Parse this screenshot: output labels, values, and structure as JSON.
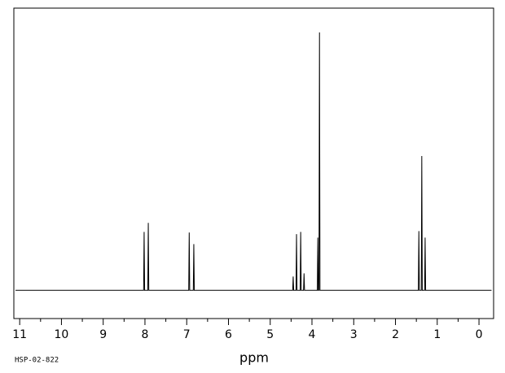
{
  "chart_data": {
    "type": "line",
    "x_label": "ppm",
    "footnote": "HSP-02-822",
    "color": "#000000",
    "x": [
      11.1,
      8.032,
      8.02,
      8.008,
      7.932,
      7.92,
      7.908,
      6.952,
      6.94,
      6.928,
      6.842,
      6.83,
      6.818,
      4.462,
      4.45,
      4.438,
      4.382,
      4.37,
      4.358,
      4.282,
      4.27,
      4.258,
      4.202,
      4.19,
      4.178,
      3.872,
      3.86,
      3.848,
      3.832,
      3.82,
      3.808,
      1.452,
      1.44,
      1.428,
      1.382,
      1.37,
      1.358,
      1.302,
      1.29,
      1.278,
      -0.3
    ],
    "values": [
      0,
      0,
      20.7,
      0,
      0,
      23.9,
      0,
      0,
      20.5,
      0,
      0,
      16.4,
      0,
      0,
      4.9,
      0,
      0,
      19.9,
      0,
      0,
      20.7,
      0,
      0,
      6.0,
      0,
      0,
      18.7,
      0,
      0,
      91.4,
      0,
      0,
      21.0,
      0,
      0,
      47.6,
      0,
      0,
      18.7,
      0,
      0
    ],
    "xlim": [
      11.14,
      -0.35
    ],
    "ylim": [
      -10,
      100
    ],
    "xticks": [
      11,
      10,
      9,
      8,
      7,
      6,
      5,
      4,
      3,
      2,
      1,
      0
    ],
    "xminorticks": [
      10.5,
      9.5,
      8.5,
      7.5,
      6.5,
      5.5,
      4.5,
      3.5,
      2.5,
      1.5,
      0.5
    ]
  }
}
